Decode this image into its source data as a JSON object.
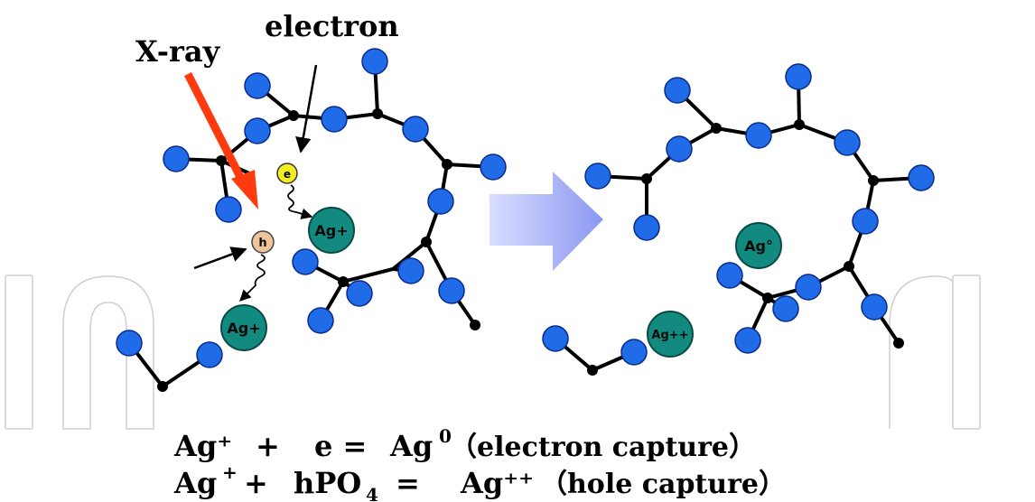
{
  "labels": {
    "xray": "X-ray",
    "electron": "electron",
    "electron_particle": "e",
    "hole_particle": "h"
  },
  "ions": {
    "left_upper": "Ag+",
    "left_lower": "Ag+",
    "right_upper": "Ag°",
    "right_lower": "Ag++"
  },
  "equations": {
    "line1": {
      "a": "Ag⁺",
      "b": "+",
      "c": "e =",
      "d": "Ag",
      "d_sup": "0",
      "e": "（electron capture）"
    },
    "line2": {
      "a": "Ag",
      "a_sup": "+",
      "b": "+",
      "c": "hPO",
      "c_sub": "4",
      "d": "=",
      "e": "Ag⁺⁺",
      "f": "（hole capture）"
    }
  },
  "colors": {
    "atom_blue": "#1f6be8",
    "atom_outline": "#0a2a8a",
    "ion_teal": "#138a80",
    "xray_arrow": "#ff3a0e",
    "electron_yellow": "#f2ee22",
    "hole_tan": "#efc49a",
    "process_arrow": "#a9b4f6",
    "watermark": "#cfcfcf"
  }
}
